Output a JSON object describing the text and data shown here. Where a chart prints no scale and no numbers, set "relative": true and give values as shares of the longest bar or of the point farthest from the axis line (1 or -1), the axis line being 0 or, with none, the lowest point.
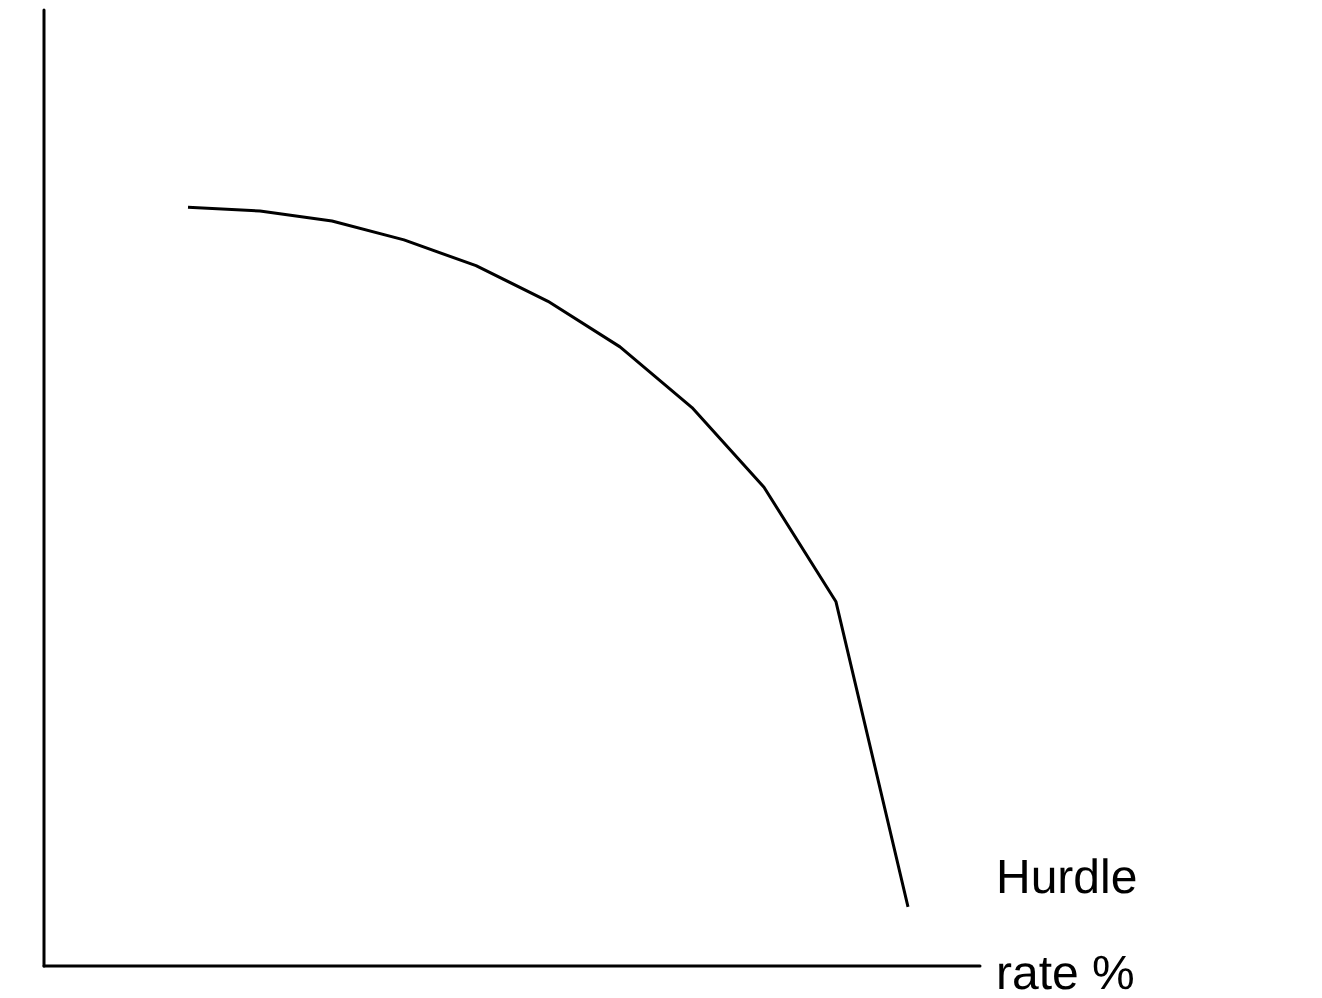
{
  "chart_data": {
    "type": "line",
    "relative": true,
    "xlabel": "Hurdle rate %",
    "categories": [
      null,
      null,
      null,
      null,
      null,
      null,
      null,
      null,
      null,
      null,
      null,
      null,
      null,
      null
    ],
    "series": [
      {
        "color": "#000000",
        "values": [
          null,
          null,
          1,
          0.995,
          0.982,
          0.957,
          0.923,
          0.876,
          0.816,
          0.736,
          0.631,
          0.48,
          0.078,
          null
        ]
      }
    ],
    "marker": "none",
    "line_style": "solid"
  }
}
